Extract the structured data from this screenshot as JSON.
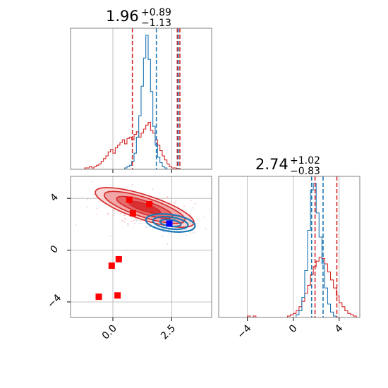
{
  "chart_data": [
    {
      "type": "histogram",
      "panel": "top-left",
      "title": {
        "value": "1.96",
        "plus": "+0.89",
        "minus": "−1.13"
      },
      "xlim": [
        -1.8,
        4.2
      ],
      "ylim": [
        0,
        1
      ],
      "grid": true,
      "bins_x_start": -1.2,
      "bins_step": 0.1,
      "series": [
        {
          "color": "#d62728",
          "values": [
            0.01,
            0.01,
            0.02,
            0.01,
            0.02,
            0.03,
            0.04,
            0.06,
            0.08,
            0.1,
            0.13,
            0.15,
            0.12,
            0.16,
            0.18,
            0.2,
            0.22,
            0.19,
            0.23,
            0.24,
            0.22,
            0.26,
            0.28,
            0.24,
            0.27,
            0.3,
            0.33,
            0.35,
            0.29,
            0.27,
            0.22,
            0.18,
            0.14,
            0.1,
            0.07,
            0.04,
            0.02,
            0.01,
            0.01
          ]
        },
        {
          "color": "#1f77b4",
          "values": [
            0,
            0,
            0,
            0,
            0,
            0,
            0,
            0,
            0,
            0,
            0,
            0,
            0,
            0,
            0,
            0,
            0,
            0.01,
            0.02,
            0.03,
            0.06,
            0.12,
            0.24,
            0.4,
            0.62,
            0.83,
            1.0,
            0.82,
            0.58,
            0.32,
            0.18,
            0.09,
            0.05,
            0.02,
            0.01,
            0,
            0,
            0,
            0
          ]
        }
      ],
      "quantile_lines": [
        {
          "color": "#d62728",
          "values": [
            0.83,
            2.74,
            2.85
          ]
        },
        {
          "color": "#1f77b4",
          "values": [
            1.85,
            2.78
          ]
        }
      ]
    },
    {
      "type": "histogram",
      "panel": "bottom-right",
      "title": {
        "value": "2.74",
        "plus": "+1.02",
        "minus": "−0.83"
      },
      "xlim": [
        -6.5,
        5.8
      ],
      "ylim": [
        0,
        1
      ],
      "grid": true,
      "xticks": [
        "−4",
        "0",
        "4"
      ],
      "xtick_values": [
        -4,
        0,
        4
      ],
      "bins_x_start": -4.0,
      "bins_step": 0.25,
      "series": [
        {
          "color": "#d62728",
          "values": [
            0.01,
            0,
            0.01,
            0,
            0,
            0,
            0,
            0,
            0,
            0,
            0,
            0,
            0,
            0,
            0.01,
            0.02,
            0.03,
            0.05,
            0.08,
            0.12,
            0.18,
            0.24,
            0.32,
            0.38,
            0.42,
            0.45,
            0.44,
            0.4,
            0.34,
            0.28,
            0.22,
            0.16,
            0.11,
            0.08,
            0.05,
            0.03,
            0.02,
            0.01
          ]
        },
        {
          "color": "#1f77b4",
          "values": [
            0,
            0,
            0,
            0,
            0,
            0,
            0,
            0,
            0,
            0,
            0,
            0,
            0,
            0,
            0,
            0,
            0,
            0.02,
            0.05,
            0.15,
            0.35,
            0.65,
            0.95,
            1.0,
            0.78,
            0.6,
            0.4,
            0.22,
            0.1,
            0.04,
            0.01,
            0,
            0,
            0,
            0,
            0,
            0,
            0
          ]
        }
      ],
      "quantile_lines": [
        {
          "color": "#d62728",
          "values": [
            1.9,
            3.8
          ]
        },
        {
          "color": "#1f77b4",
          "values": [
            1.6,
            2.6
          ]
        }
      ]
    },
    {
      "type": "scatter-contour",
      "panel": "bottom-left",
      "xlim": [
        -1.8,
        4.2
      ],
      "ylim": [
        -5.2,
        5.7
      ],
      "grid": true,
      "xticks": [
        "0.0",
        "2.5"
      ],
      "xtick_values": [
        0.0,
        2.5
      ],
      "yticks": [
        "−4",
        "0",
        "4"
      ],
      "ytick_values": [
        -4,
        0,
        4
      ],
      "contours": [
        {
          "color": "#d62728",
          "cx": 1.35,
          "cy": 3.3,
          "rx": [
            2.2,
            1.8,
            1.25,
            0.7
          ],
          "ry": [
            0.95,
            0.75,
            0.5,
            0.28
          ],
          "rot": 18
        },
        {
          "color": "#1f77b4",
          "cx": 2.45,
          "cy": 2.1,
          "rx": [
            1.05,
            0.75,
            0.45
          ],
          "ry": [
            0.65,
            0.45,
            0.25
          ],
          "rot": 8
        }
      ],
      "points": [
        {
          "x": -0.6,
          "y": -3.6,
          "color": "#ff0000"
        },
        {
          "x": 0.2,
          "y": -3.5,
          "color": "#ff0000"
        },
        {
          "x": -0.05,
          "y": -1.2,
          "color": "#ff0000"
        },
        {
          "x": 0.25,
          "y": -0.7,
          "color": "#ff0000"
        },
        {
          "x": 0.85,
          "y": 2.85,
          "color": "#ff0000"
        },
        {
          "x": 0.7,
          "y": 3.9,
          "color": "#ff0000"
        },
        {
          "x": 1.55,
          "y": 3.55,
          "color": "#ff0000"
        },
        {
          "x": 2.4,
          "y": 2.05,
          "color": "#0000ff"
        }
      ]
    }
  ]
}
